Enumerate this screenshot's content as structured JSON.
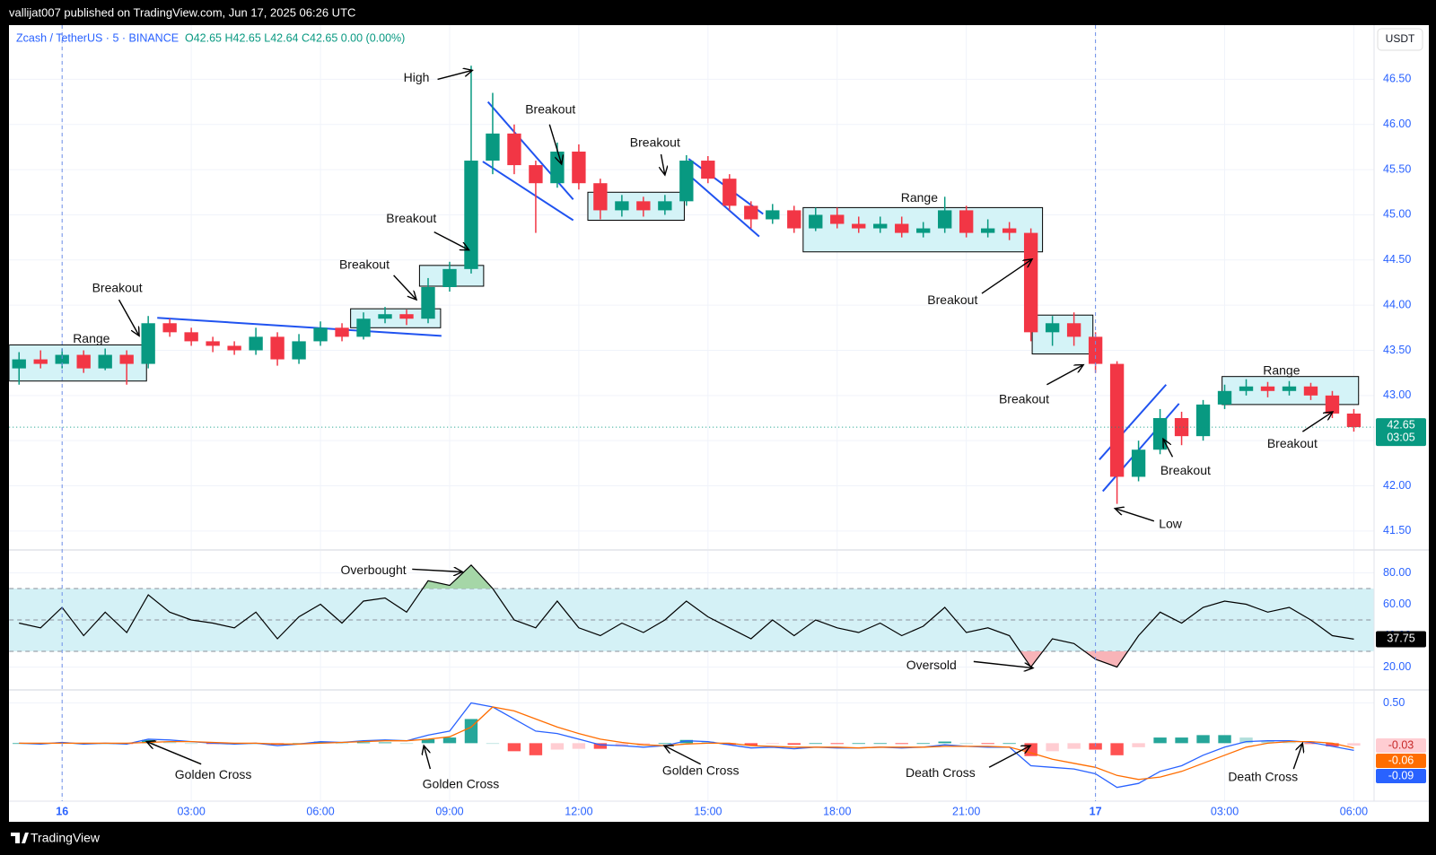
{
  "header": {
    "publisher": "vallijat007 published on TradingView.com, Jun 17, 2025 06:26 UTC"
  },
  "footer": {
    "brand": "TradingView"
  },
  "chart_data": [
    {
      "type": "candlestick",
      "legend": {
        "symbol": "Zcash / TetherUS · 5 · BINANCE",
        "ohlc": "O42.65 H42.65 L42.64 C42.65 0.00 (0.00%)"
      },
      "currency": "USDT",
      "countdown": "03:05",
      "x": [
        -1,
        -0.5,
        0,
        0.5,
        1,
        1.5,
        2,
        2.5,
        3,
        3.5,
        4,
        4.5,
        5,
        5.5,
        6,
        6.5,
        7,
        7.5,
        8,
        8.5,
        9,
        9.5,
        10,
        10.5,
        11,
        11.5,
        12,
        12.5,
        13,
        13.5,
        14,
        14.5,
        15,
        15.5,
        16,
        16.5,
        17,
        17.5,
        18,
        18.5,
        19,
        19.5,
        20,
        20.5,
        21,
        21.5,
        22,
        22.5,
        23,
        23.5,
        24,
        24.5,
        25,
        25.5,
        26,
        26.5,
        27,
        27.5,
        28,
        28.5,
        29,
        29.5,
        30
      ],
      "open": [
        43.3,
        43.4,
        43.35,
        43.45,
        43.3,
        43.45,
        43.35,
        43.8,
        43.7,
        43.6,
        43.55,
        43.5,
        43.65,
        43.4,
        43.6,
        43.75,
        43.65,
        43.85,
        43.9,
        43.85,
        44.2,
        44.4,
        45.6,
        45.9,
        45.55,
        45.35,
        45.7,
        45.35,
        45.05,
        45.15,
        45.05,
        45.15,
        45.6,
        45.4,
        45.1,
        44.95,
        45.05,
        44.85,
        45.0,
        44.9,
        44.85,
        44.9,
        44.8,
        44.85,
        45.05,
        44.8,
        44.85,
        44.8,
        43.7,
        43.8,
        43.65,
        43.35,
        42.1,
        42.4,
        42.75,
        42.55,
        42.9,
        43.05,
        43.1,
        43.05,
        43.1,
        43.0,
        42.8
      ],
      "high": [
        43.48,
        43.5,
        43.52,
        43.5,
        43.52,
        43.5,
        43.88,
        43.85,
        43.75,
        43.65,
        43.6,
        43.75,
        43.7,
        43.68,
        43.82,
        43.8,
        43.92,
        43.98,
        43.95,
        44.3,
        44.48,
        46.65,
        46.35,
        46.0,
        45.6,
        45.8,
        45.78,
        45.4,
        45.22,
        45.2,
        45.22,
        45.66,
        45.65,
        45.45,
        45.15,
        45.12,
        45.1,
        45.08,
        45.08,
        44.98,
        44.98,
        44.98,
        44.92,
        45.2,
        45.1,
        44.95,
        44.92,
        44.85,
        43.88,
        43.92,
        43.7,
        43.38,
        42.5,
        42.85,
        42.82,
        42.95,
        43.12,
        43.18,
        43.15,
        43.16,
        43.14,
        43.05,
        42.85
      ],
      "low": [
        43.12,
        43.3,
        43.3,
        43.25,
        43.28,
        43.12,
        43.3,
        43.65,
        43.55,
        43.48,
        43.45,
        43.45,
        43.33,
        43.35,
        43.55,
        43.6,
        43.62,
        43.8,
        43.78,
        43.8,
        44.15,
        44.35,
        45.45,
        45.45,
        44.8,
        45.3,
        45.28,
        44.95,
        44.98,
        44.98,
        45.0,
        45.1,
        45.35,
        45.05,
        44.85,
        44.9,
        44.8,
        44.82,
        44.85,
        44.8,
        44.8,
        44.75,
        44.75,
        44.8,
        44.75,
        44.75,
        44.72,
        43.6,
        43.55,
        43.55,
        43.25,
        41.8,
        42.05,
        42.35,
        42.45,
        42.5,
        42.85,
        43.0,
        42.98,
        43.0,
        42.95,
        42.75,
        42.6
      ],
      "close": [
        43.4,
        43.35,
        43.45,
        43.3,
        43.45,
        43.35,
        43.8,
        43.7,
        43.6,
        43.55,
        43.5,
        43.65,
        43.4,
        43.6,
        43.75,
        43.65,
        43.85,
        43.9,
        43.85,
        44.2,
        44.4,
        45.6,
        45.9,
        45.55,
        45.35,
        45.7,
        45.35,
        45.05,
        45.15,
        45.05,
        45.15,
        45.6,
        45.4,
        45.1,
        44.95,
        45.05,
        44.85,
        45.0,
        44.9,
        44.85,
        44.9,
        44.8,
        44.85,
        45.05,
        44.8,
        44.85,
        44.8,
        43.7,
        43.8,
        43.65,
        43.35,
        42.1,
        42.4,
        42.75,
        42.55,
        42.9,
        43.05,
        43.1,
        43.05,
        43.1,
        43.0,
        42.8,
        42.65
      ],
      "up_color": "#089981",
      "down_color": "#f23645",
      "grid": true,
      "xlim": [
        -1.23,
        30.47
      ],
      "xticks": [
        {
          "value": 0,
          "label": "16"
        },
        {
          "value": 3,
          "label": "03:00"
        },
        {
          "value": 6,
          "label": "06:00"
        },
        {
          "value": 9,
          "label": "09:00"
        },
        {
          "value": 12,
          "label": "12:00"
        },
        {
          "value": 15,
          "label": "15:00"
        },
        {
          "value": 18,
          "label": "18:00"
        },
        {
          "value": 21,
          "label": "21:00"
        },
        {
          "value": 24,
          "label": "17"
        },
        {
          "value": 27,
          "label": "03:00"
        },
        {
          "value": 30,
          "label": "06:00"
        }
      ],
      "ylim": [
        41.3,
        47.1
      ],
      "yticks": [
        {
          "value": 41.5,
          "label": "41.50"
        },
        {
          "value": 42,
          "label": "42.00"
        },
        {
          "value": 42.5,
          "label": "42.50"
        },
        {
          "value": 43,
          "label": "43.00"
        },
        {
          "value": 43.5,
          "label": "43.50"
        },
        {
          "value": 44,
          "label": "44.00"
        },
        {
          "value": 44.5,
          "label": "44.50"
        },
        {
          "value": 45,
          "label": "45.00"
        },
        {
          "value": 45.5,
          "label": "45.50"
        },
        {
          "value": 46,
          "label": "46.00"
        },
        {
          "value": 46.5,
          "label": "46.50"
        }
      ],
      "session_breaks": [
        0,
        24
      ],
      "box_color": "#d4f3f7",
      "line_color": "#2053f0",
      "boxes": [
        {
          "x": [
            -1.23,
            1.96
          ],
          "y": [
            43.16,
            43.56
          ]
        },
        {
          "x": [
            6.7,
            8.79
          ],
          "y": [
            43.75,
            43.96
          ]
        },
        {
          "x": [
            8.3,
            9.79
          ],
          "y": [
            44.21,
            44.44
          ]
        },
        {
          "x": [
            12.21,
            14.45
          ],
          "y": [
            44.94,
            45.25
          ]
        },
        {
          "x": [
            17.21,
            22.77
          ],
          "y": [
            44.59,
            45.08
          ]
        },
        {
          "x": [
            22.53,
            23.94
          ],
          "y": [
            43.46,
            43.89
          ]
        },
        {
          "x": [
            26.94,
            30.11
          ],
          "y": [
            42.9,
            43.21
          ]
        }
      ],
      "trendlines": [
        {
          "x": [
            2.21,
            8.81
          ],
          "y": [
            43.86,
            43.66
          ]
        },
        {
          "x": [
            9.89,
            11.87
          ],
          "y": [
            46.25,
            45.17
          ]
        },
        {
          "x": [
            9.77,
            11.87
          ],
          "y": [
            45.59,
            44.94
          ]
        },
        {
          "x": [
            14.55,
            16.28
          ],
          "y": [
            45.62,
            45.01
          ]
        },
        {
          "x": [
            14.51,
            16.19
          ],
          "y": [
            45.46,
            44.76
          ]
        },
        {
          "x": [
            24.09,
            25.64
          ],
          "y": [
            42.29,
            43.12
          ]
        },
        {
          "x": [
            24.17,
            25.94
          ],
          "y": [
            41.94,
            42.91
          ]
        }
      ],
      "annotations": [
        {
          "text": "Breakout",
          "x": 1.28,
          "y": 44.18,
          "arrow": {
            "x": [
              1.32,
              1.79
            ],
            "y": [
              44.06,
              43.66
            ]
          }
        },
        {
          "text": "Range",
          "x": 0.68,
          "y": 43.62
        },
        {
          "text": "Breakout",
          "x": 7.02,
          "y": 44.44,
          "arrow": {
            "x": [
              7.7,
              8.23
            ],
            "y": [
              44.33,
              44.06
            ]
          }
        },
        {
          "text": "Breakout",
          "x": 8.11,
          "y": 44.95,
          "arrow": {
            "x": [
              8.64,
              9.45
            ],
            "y": [
              44.81,
              44.61
            ]
          }
        },
        {
          "text": "High",
          "x": 8.23,
          "y": 46.51,
          "arrow": {
            "x": [
              8.72,
              9.53
            ],
            "y": [
              46.5,
              46.6
            ]
          }
        },
        {
          "text": "Breakout",
          "x": 11.34,
          "y": 46.16,
          "arrow": {
            "x": [
              11.32,
              11.6
            ],
            "y": [
              46.0,
              45.56
            ]
          }
        },
        {
          "text": "Breakout",
          "x": 13.77,
          "y": 45.79,
          "arrow": {
            "x": [
              13.91,
              14.0
            ],
            "y": [
              45.67,
              45.44
            ]
          }
        },
        {
          "text": "Range",
          "x": 19.91,
          "y": 45.18
        },
        {
          "text": "Breakout",
          "x": 20.68,
          "y": 44.05,
          "arrow": {
            "x": [
              21.36,
              22.53
            ],
            "y": [
              44.13,
              44.51
            ]
          }
        },
        {
          "text": "Breakout",
          "x": 22.34,
          "y": 42.95,
          "arrow": {
            "x": [
              22.87,
              23.72
            ],
            "y": [
              43.12,
              43.34
            ]
          }
        },
        {
          "text": "Low",
          "x": 25.74,
          "y": 41.57,
          "arrow": {
            "x": [
              25.36,
              24.45
            ],
            "y": [
              41.61,
              41.75
            ]
          }
        },
        {
          "text": "Breakout",
          "x": 26.09,
          "y": 42.16,
          "arrow": {
            "x": [
              25.79,
              25.57
            ],
            "y": [
              42.32,
              42.52
            ]
          }
        },
        {
          "text": "Range",
          "x": 28.32,
          "y": 43.27
        },
        {
          "text": "Breakout",
          "x": 28.57,
          "y": 42.46,
          "arrow": {
            "x": [
              28.81,
              29.51
            ],
            "y": [
              42.6,
              42.82
            ]
          }
        }
      ]
    },
    {
      "type": "rsi",
      "values": [
        48,
        45,
        58,
        40,
        55,
        42,
        66,
        55,
        50,
        48,
        45,
        55,
        38,
        52,
        60,
        48,
        62,
        64,
        55,
        75,
        72,
        85,
        70,
        50,
        45,
        62,
        45,
        40,
        48,
        42,
        50,
        62,
        52,
        45,
        38,
        50,
        40,
        50,
        45,
        42,
        48,
        40,
        46,
        58,
        42,
        45,
        40,
        20,
        38,
        35,
        25,
        20,
        40,
        55,
        48,
        58,
        62,
        60,
        55,
        58,
        50,
        40,
        37.75
      ],
      "color": "#000000",
      "grid": true,
      "ylim": [
        6,
        94
      ],
      "yticks": [
        {
          "value": 20,
          "label": "20.00"
        },
        {
          "value": 40,
          "label": "40.00"
        },
        {
          "value": 60,
          "label": "60.00"
        },
        {
          "value": 80,
          "label": "80.00"
        }
      ],
      "bands": [
        30,
        50,
        70
      ],
      "band_color": "#d4f1f6",
      "overbought_color": "#a5d6a7",
      "oversold_color": "#f8b4b8",
      "annotations": [
        {
          "text": "Overbought",
          "x": 7.23,
          "y": 81.2,
          "arrow": {
            "x": [
              8.13,
              9.3
            ],
            "y": [
              82.3,
              80.6
            ]
          }
        },
        {
          "text": "Oversold",
          "x": 20.19,
          "y": 20.6,
          "arrow": {
            "x": [
              21.17,
              22.55
            ],
            "y": [
              23.5,
              19.4
            ]
          }
        }
      ]
    },
    {
      "type": "macd",
      "macd": {
        "color": "#2962ff",
        "values": [
          0,
          -0.01,
          0.01,
          -0.01,
          0,
          -0.01,
          0.05,
          0.04,
          0.02,
          0,
          -0.01,
          0,
          -0.03,
          -0.01,
          0.02,
          0.01,
          0.03,
          0.04,
          0.03,
          0.1,
          0.15,
          0.5,
          0.45,
          0.3,
          0.15,
          0.12,
          0.05,
          -0.02,
          -0.03,
          -0.05,
          -0.03,
          0.03,
          0.02,
          -0.02,
          -0.06,
          -0.05,
          -0.07,
          -0.05,
          -0.06,
          -0.06,
          -0.05,
          -0.06,
          -0.05,
          -0.02,
          -0.04,
          -0.05,
          -0.05,
          -0.28,
          -0.3,
          -0.32,
          -0.38,
          -0.55,
          -0.5,
          -0.35,
          -0.28,
          -0.15,
          -0.05,
          0.02,
          0.03,
          0.03,
          0.01,
          -0.04,
          -0.09
        ]
      },
      "signal": {
        "color": "#ff6d00",
        "values": [
          0,
          0,
          0,
          0,
          0,
          0,
          0.01,
          0.02,
          0.02,
          0.01,
          0,
          0,
          -0.01,
          -0.01,
          0,
          0.01,
          0.02,
          0.03,
          0.03,
          0.05,
          0.08,
          0.2,
          0.45,
          0.4,
          0.3,
          0.2,
          0.12,
          0.05,
          0.01,
          -0.02,
          -0.03,
          -0.01,
          0,
          0,
          -0.03,
          -0.04,
          -0.05,
          -0.05,
          -0.05,
          -0.06,
          -0.05,
          -0.05,
          -0.05,
          -0.04,
          -0.04,
          -0.04,
          -0.05,
          -0.12,
          -0.2,
          -0.25,
          -0.3,
          -0.4,
          -0.45,
          -0.42,
          -0.35,
          -0.25,
          -0.15,
          -0.05,
          0,
          0.02,
          0.02,
          0,
          -0.06
        ]
      },
      "histogram": [
        0,
        -0.01,
        0.01,
        -0.01,
        0,
        -0.01,
        0.04,
        0.02,
        0,
        -0.01,
        -0.01,
        0,
        -0.02,
        0,
        0.02,
        0,
        0.01,
        0.01,
        0,
        0.05,
        0.07,
        0.3,
        0,
        -0.1,
        -0.15,
        -0.08,
        -0.07,
        -0.07,
        -0.04,
        -0.03,
        0,
        0.04,
        0.02,
        -0.02,
        -0.03,
        -0.01,
        -0.02,
        0,
        -0.01,
        0,
        0,
        -0.01,
        0,
        0.02,
        0,
        -0.01,
        0,
        -0.16,
        -0.1,
        -0.07,
        -0.08,
        -0.15,
        -0.05,
        0.07,
        0.07,
        0.1,
        0.1,
        0.07,
        0.03,
        0.01,
        -0.01,
        -0.04,
        -0.03
      ],
      "hist_colors": [
        "#26a69a",
        "#b2dfdb",
        "#ffcdd2",
        "#ff5252"
      ],
      "grid": true,
      "ylim": [
        -0.72,
        0.65
      ],
      "yticks": [
        {
          "value": 0.5,
          "label": "0.50"
        }
      ],
      "annotations": [
        {
          "text": "Golden Cross",
          "x": 3.51,
          "y": -0.4,
          "arrow": {
            "x": [
              3.23,
              1.96
            ],
            "y": [
              -0.26,
              0.02
            ]
          }
        },
        {
          "text": "Golden Cross",
          "x": 9.26,
          "y": -0.52,
          "arrow": {
            "x": [
              8.55,
              8.4
            ],
            "y": [
              -0.32,
              -0.03
            ]
          }
        },
        {
          "text": "Golden Cross",
          "x": 14.83,
          "y": -0.35,
          "arrow": {
            "x": [
              14.83,
              13.98
            ],
            "y": [
              -0.26,
              -0.03
            ]
          }
        },
        {
          "text": "Death Cross",
          "x": 20.4,
          "y": -0.38,
          "arrow": {
            "x": [
              21.53,
              22.49
            ],
            "y": [
              -0.3,
              -0.03
            ]
          }
        },
        {
          "text": "Death Cross",
          "x": 27.89,
          "y": -0.43,
          "arrow": {
            "x": [
              28.6,
              28.81
            ],
            "y": [
              -0.32,
              0
            ]
          }
        }
      ]
    }
  ]
}
